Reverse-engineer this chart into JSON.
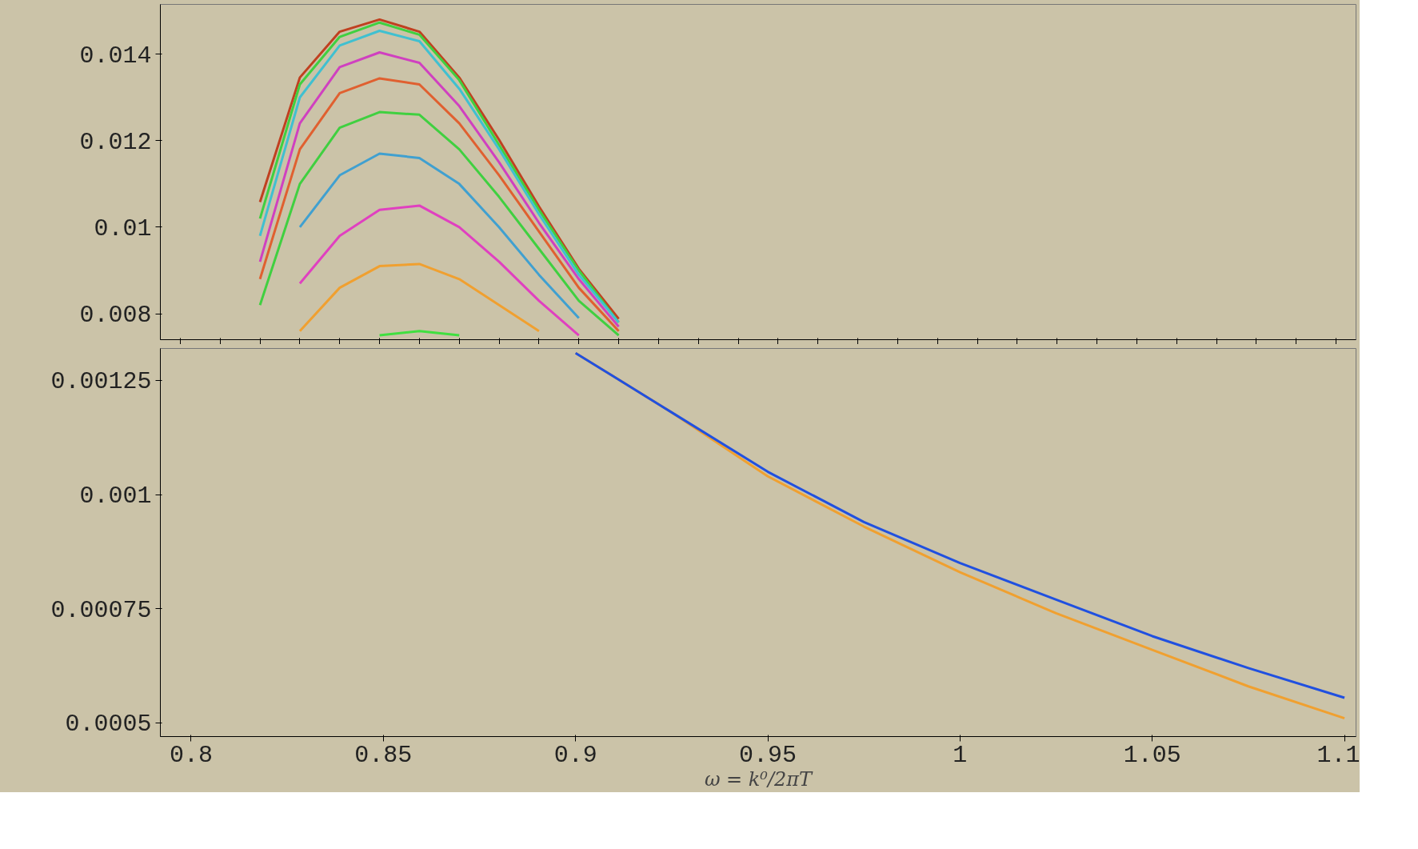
{
  "chart_data": [
    {
      "type": "line",
      "categories": [
        null,
        null,
        null,
        null,
        null,
        null,
        null,
        null,
        null,
        null,
        null,
        null,
        null,
        null,
        null,
        null,
        null,
        null,
        null,
        null,
        null,
        null,
        null,
        null,
        null,
        null,
        null,
        null,
        null,
        null
      ],
      "ylim": [
        0.0074,
        0.01515
      ],
      "yticks": [
        0.008,
        0.01,
        0.012,
        0.014
      ],
      "tick_labels": "y",
      "grid": false,
      "series": [
        {
          "color": "#c04020",
          "values": [
            null,
            null,
            0.01058,
            0.01346,
            0.01452,
            0.0148,
            0.01452,
            0.01346,
            0.01202,
            0.01048,
            0.00904,
            0.00788,
            null,
            null,
            null,
            null,
            null,
            null,
            null,
            null,
            null,
            null,
            null,
            null,
            null,
            null,
            null,
            null,
            null,
            null
          ]
        },
        {
          "color": "#40d040",
          "values": [
            null,
            null,
            0.0102,
            0.0133,
            0.0144,
            0.01473,
            0.01445,
            0.0134,
            0.0119,
            0.0104,
            0.009,
            0.0078,
            null,
            null,
            null,
            null,
            null,
            null,
            null,
            null,
            null,
            null,
            null,
            null,
            null,
            null,
            null,
            null,
            null,
            null
          ]
        },
        {
          "color": "#40c0d0",
          "values": [
            null,
            null,
            0.0098,
            0.013,
            0.0142,
            0.01454,
            0.0143,
            0.0132,
            0.0118,
            0.0103,
            0.0089,
            0.0078,
            null,
            null,
            null,
            null,
            null,
            null,
            null,
            null,
            null,
            null,
            null,
            null,
            null,
            null,
            null,
            null,
            null,
            null
          ]
        },
        {
          "color": "#d040c0",
          "values": [
            null,
            null,
            0.0092,
            0.0124,
            0.0137,
            0.01404,
            0.0138,
            0.0128,
            0.0115,
            0.0101,
            0.0088,
            0.0077,
            null,
            null,
            null,
            null,
            null,
            null,
            null,
            null,
            null,
            null,
            null,
            null,
            null,
            null,
            null,
            null,
            null,
            null
          ]
        },
        {
          "color": "#e06030",
          "values": [
            null,
            null,
            0.0088,
            0.0118,
            0.0131,
            0.01344,
            0.0133,
            0.0124,
            0.0112,
            0.0099,
            0.0086,
            0.0076,
            null,
            null,
            null,
            null,
            null,
            null,
            null,
            null,
            null,
            null,
            null,
            null,
            null,
            null,
            null,
            null,
            null,
            null
          ]
        },
        {
          "color": "#40d040",
          "values": [
            null,
            null,
            0.0082,
            0.011,
            0.0123,
            0.01266,
            0.0126,
            0.0118,
            0.0107,
            0.0095,
            0.0083,
            0.0075,
            null,
            null,
            null,
            null,
            null,
            null,
            null,
            null,
            null,
            null,
            null,
            null,
            null,
            null,
            null,
            null,
            null,
            null
          ]
        },
        {
          "color": "#40a0d0",
          "values": [
            null,
            null,
            null,
            0.01,
            0.0112,
            0.0117,
            0.0116,
            0.011,
            0.01,
            0.0089,
            0.0079,
            null,
            null,
            null,
            null,
            null,
            null,
            null,
            null,
            null,
            null,
            null,
            null,
            null,
            null,
            null,
            null,
            null,
            null,
            null
          ]
        },
        {
          "color": "#e040c0",
          "values": [
            null,
            null,
            null,
            0.0087,
            0.0098,
            0.0104,
            0.0105,
            0.01,
            0.0092,
            0.0083,
            0.0075,
            null,
            null,
            null,
            null,
            null,
            null,
            null,
            null,
            null,
            null,
            null,
            null,
            null,
            null,
            null,
            null,
            null,
            null,
            null
          ]
        },
        {
          "color": "#f0a030",
          "values": [
            null,
            null,
            null,
            0.0076,
            0.0086,
            0.0091,
            0.00915,
            0.0088,
            0.0082,
            0.0076,
            null,
            null,
            null,
            null,
            null,
            null,
            null,
            null,
            null,
            null,
            null,
            null,
            null,
            null,
            null,
            null,
            null,
            null,
            null,
            null
          ]
        },
        {
          "color": "#40e040",
          "values": [
            null,
            null,
            null,
            null,
            null,
            0.0075,
            0.0076,
            0.0075,
            null,
            null,
            null,
            null,
            null,
            null,
            null,
            null,
            null,
            null,
            null,
            null,
            null,
            null,
            null,
            null,
            null,
            null,
            null,
            null,
            null,
            null
          ]
        }
      ]
    },
    {
      "type": "line",
      "xlabel": "ω = k⁰/2πT",
      "x": [
        0.9,
        0.925,
        0.95,
        0.975,
        1.0,
        1.025,
        1.05,
        1.075,
        1.1
      ],
      "xlim": [
        0.792,
        1.103
      ],
      "ylim": [
        0.00047,
        0.00132
      ],
      "xticks": [
        0.8,
        0.85,
        0.9,
        0.95,
        1,
        1.05,
        1.1
      ],
      "yticks": [
        0.0005,
        0.00075,
        0.001,
        0.00125
      ],
      "grid": false,
      "series": [
        {
          "color": "#f0a030",
          "values": [
            0.00131,
            0.00118,
            0.00104,
            0.00093,
            0.00083,
            0.00074,
            0.00066,
            0.00058,
            0.00051
          ]
        },
        {
          "color": "#2050e0",
          "values": [
            0.00131,
            0.00118,
            0.00105,
            0.00094,
            0.00085,
            0.00077,
            0.00069,
            0.00062,
            0.000555
          ]
        }
      ]
    }
  ]
}
